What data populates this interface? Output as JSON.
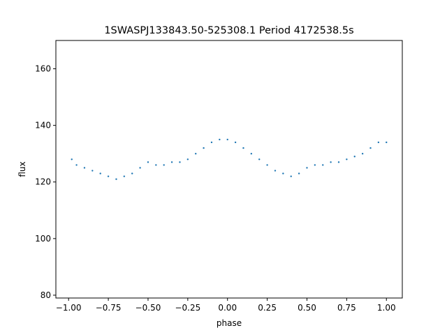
{
  "chart_data": {
    "type": "scatter",
    "title": "1SWASPJ133843.50-525308.1 Period 4172538.5s",
    "xlabel": "phase",
    "ylabel": "flux",
    "xlim": [
      -1.08,
      1.1
    ],
    "ylim": [
      79,
      170
    ],
    "x_ticks": [
      -1.0,
      -0.75,
      -0.5,
      -0.25,
      0.0,
      0.25,
      0.5,
      0.75,
      1.0
    ],
    "x_tick_labels": [
      "−1.00",
      "−0.75",
      "−0.50",
      "−0.25",
      "0.00",
      "0.25",
      "0.50",
      "0.75",
      "1.00"
    ],
    "y_ticks": [
      80,
      100,
      120,
      140,
      160
    ],
    "y_tick_labels": [
      "80",
      "100",
      "120",
      "140",
      "160"
    ],
    "grid": false,
    "legend": "none",
    "marker_color": "#1f77b4",
    "series": [
      {
        "x": [
          -0.98,
          -0.95,
          -0.9,
          -0.85,
          -0.8,
          -0.75,
          -0.7,
          -0.65,
          -0.6,
          -0.55,
          -0.5,
          -0.45,
          -0.4,
          -0.35,
          -0.3,
          -0.25,
          -0.2,
          -0.15,
          -0.1,
          -0.05,
          0.0,
          0.05,
          0.1,
          0.15,
          0.2,
          0.25,
          0.3,
          0.35,
          0.4,
          0.45,
          0.5,
          0.55,
          0.6,
          0.65,
          0.7,
          0.75,
          0.8,
          0.85,
          0.9,
          0.95,
          1.0
        ],
        "y": [
          128,
          126,
          125,
          124,
          123,
          122,
          121,
          122,
          123,
          125,
          127,
          126,
          126,
          127,
          127,
          128,
          130,
          132,
          134,
          135,
          135,
          134,
          132,
          130,
          128,
          126,
          124,
          123,
          122,
          123,
          125,
          126,
          126,
          127,
          127,
          128,
          129,
          130,
          132,
          134,
          134
        ]
      }
    ]
  }
}
